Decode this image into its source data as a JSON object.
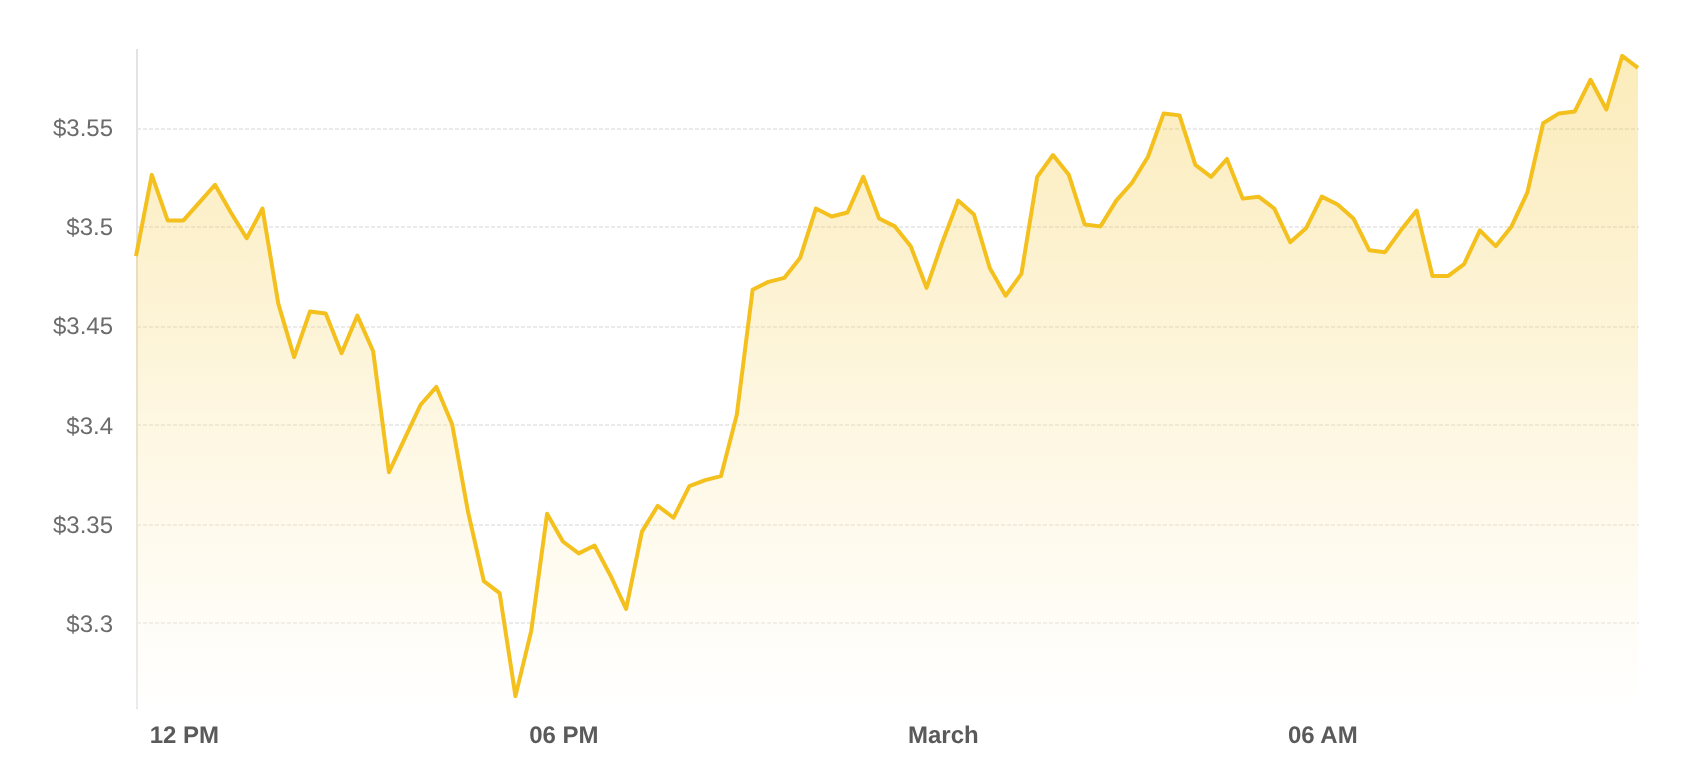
{
  "chart_data": {
    "type": "area",
    "color": "#f4c01e",
    "categories": [
      null,
      null,
      null,
      "12 PM",
      null,
      null,
      null,
      null,
      null,
      null,
      null,
      null,
      null,
      null,
      null,
      null,
      null,
      null,
      null,
      null,
      null,
      null,
      null,
      null,
      null,
      null,
      null,
      "06 PM",
      null,
      null,
      null,
      null,
      null,
      null,
      null,
      null,
      null,
      null,
      null,
      null,
      null,
      null,
      null,
      null,
      null,
      null,
      null,
      null,
      null,
      null,
      null,
      "March",
      null,
      null,
      null,
      null,
      null,
      null,
      null,
      null,
      null,
      null,
      null,
      null,
      null,
      null,
      null,
      null,
      null,
      null,
      null,
      null,
      null,
      null,
      null,
      "06 AM",
      null,
      null,
      null,
      null,
      null,
      null,
      null,
      null,
      null,
      null,
      null,
      null,
      null,
      null,
      null,
      null,
      null,
      null,
      null,
      null
    ],
    "values": [
      3.485,
      3.526,
      3.503,
      3.503,
      3.512,
      3.521,
      3.507,
      3.494,
      3.509,
      3.461,
      3.434,
      3.457,
      3.456,
      3.436,
      3.455,
      3.437,
      3.376,
      3.393,
      3.41,
      3.419,
      3.4,
      3.356,
      3.321,
      3.315,
      3.263,
      3.296,
      3.355,
      3.341,
      3.335,
      3.339,
      3.324,
      3.307,
      3.346,
      3.359,
      3.353,
      3.369,
      3.372,
      3.374,
      3.405,
      3.468,
      3.472,
      3.474,
      3.484,
      3.509,
      3.505,
      3.507,
      3.525,
      3.504,
      3.5,
      3.49,
      3.469,
      3.492,
      3.513,
      3.506,
      3.479,
      3.465,
      3.476,
      3.525,
      3.536,
      3.526,
      3.501,
      3.5,
      3.513,
      3.522,
      3.535,
      3.557,
      3.556,
      3.531,
      3.525,
      3.534,
      3.514,
      3.515,
      3.509,
      3.492,
      3.499,
      3.515,
      3.511,
      3.504,
      3.488,
      3.487,
      3.498,
      3.508,
      3.475,
      3.475,
      3.481,
      3.498,
      3.49,
      3.5,
      3.517,
      3.552,
      3.557,
      3.558,
      3.574,
      3.559,
      3.586,
      3.58
    ],
    "ylim": [
      3.257,
      3.59
    ],
    "yticks": [
      {
        "value": 3.3,
        "label": "$3.3"
      },
      {
        "value": 3.35,
        "label": "$3.35"
      },
      {
        "value": 3.4,
        "label": "$3.4"
      },
      {
        "value": 3.45,
        "label": "$3.45"
      },
      {
        "value": 3.5,
        "label": "$3.5"
      },
      {
        "value": 3.55,
        "label": "$3.55"
      }
    ],
    "grid": "y",
    "line_style": "solid",
    "marker": "none"
  }
}
